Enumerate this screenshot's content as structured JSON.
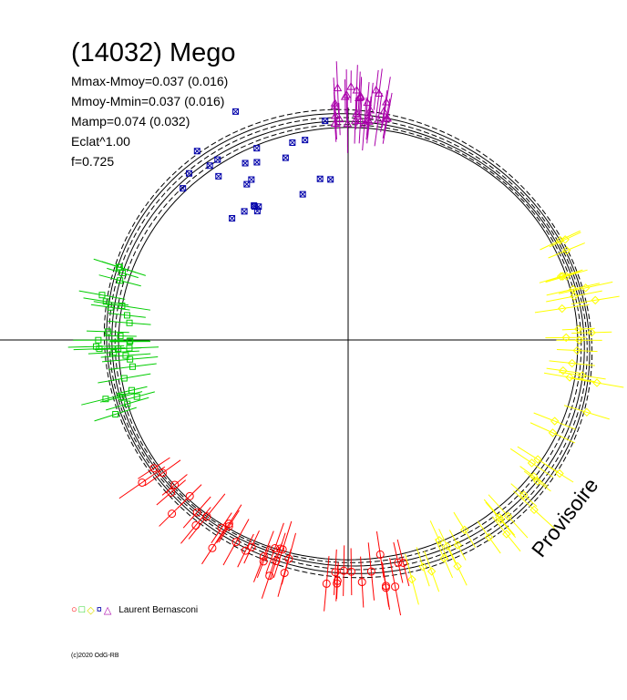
{
  "header": {
    "title": "(14032) Mego",
    "stats": [
      "Mmax-Mmoy=0.037 (0.016)",
      "Mmoy-Mmin=0.037 (0.016)",
      "Mamp=0.074 (0.032)",
      "Eclat^1.00",
      "f=0.725"
    ]
  },
  "legend": {
    "symbols": [
      "○",
      "□",
      "◇",
      "¤",
      "△"
    ],
    "observer": "Laurent Bernasconi"
  },
  "footer": {
    "copyright": "(c)2020 OdG-RB",
    "watermark": "Provisoire"
  },
  "colors": {
    "red": "#ff0000",
    "green": "#00cc00",
    "yellow": "#ffff00",
    "blue": "#0000aa",
    "magenta": "#aa00aa",
    "curve": "#000000"
  },
  "chart_data": {
    "type": "scatter",
    "projection": "polar phase plot",
    "series": [
      {
        "marker": "circle",
        "color": "red",
        "phase_range": [
          0.46,
          0.66
        ],
        "count": 40
      },
      {
        "marker": "square",
        "color": "green",
        "phase_range": [
          0.7,
          0.8
        ],
        "count": 30
      },
      {
        "marker": "diamond",
        "color": "yellow",
        "phase_range": [
          0.18,
          0.46
        ],
        "count": 45
      },
      {
        "marker": "star",
        "color": "blue",
        "phase_range": [
          0.86,
          0.99
        ],
        "count": 25
      },
      {
        "marker": "triangle",
        "color": "magenta",
        "phase_range": [
          0.99,
          1.03
        ],
        "count": 30
      }
    ],
    "curve_count": 6
  }
}
